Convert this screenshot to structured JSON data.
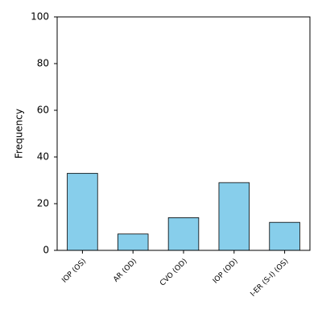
{
  "chart_data": {
    "type": "bar",
    "ylabel": "Frequency",
    "categories": [
      "IOP (OS)",
      "AR (OD)",
      "CVO (OD)",
      "IOP (OD)",
      "I-ER (S-I) (OS)"
    ],
    "values": [
      33,
      7,
      14,
      29,
      12
    ],
    "color": "#87ceeb",
    "ylim": [
      0,
      100
    ],
    "yticks": [
      0,
      20,
      40,
      60,
      80,
      100
    ],
    "grid": false
  }
}
